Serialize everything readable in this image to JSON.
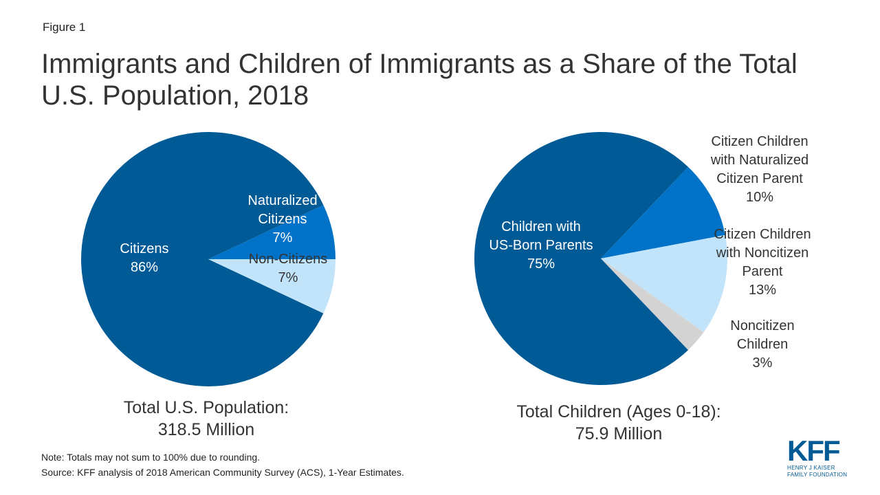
{
  "figure_label": "Figure 1",
  "title": "Immigrants and Children of Immigrants as a Share of the Total U.S. Population, 2018",
  "colors": {
    "dark_blue": "#005a96",
    "medium_blue": "#0073c8",
    "light_blue": "#c2e4fb",
    "gray": "#d3d3d3"
  },
  "chart_data": [
    {
      "type": "pie",
      "title": "Total U.S. Population: 318.5 Million",
      "caption_line1": "Total U.S. Population:",
      "caption_line2": "318.5 Million",
      "slices": [
        {
          "label": "Citizens",
          "value": 86,
          "value_label": "86%",
          "color": "#005a96",
          "label_lines": [
            "Citizens",
            "86%"
          ],
          "label_color": "#ffffff"
        },
        {
          "label": "Naturalized Citizens",
          "value": 7,
          "value_label": "7%",
          "color": "#0073c8",
          "label_lines": [
            "Naturalized",
            "Citizens",
            "7%"
          ],
          "label_color": "#ffffff"
        },
        {
          "label": "Non-Citizens",
          "value": 7,
          "value_label": "7%",
          "color": "#c2e4fb",
          "label_lines": [
            "Non-Citizens",
            "7%"
          ],
          "label_color": "#333333"
        }
      ]
    },
    {
      "type": "pie",
      "title": "Total Children (Ages 0-18): 75.9 Million",
      "caption_line1": "Total Children (Ages 0-18):",
      "caption_line2": "75.9 Million",
      "slices": [
        {
          "label": "Children with US-Born Parents",
          "value": 75,
          "value_label": "75%",
          "color": "#005a96",
          "label_lines": [
            "Children with",
            "US-Born Parents",
            "75%"
          ],
          "label_color": "#ffffff"
        },
        {
          "label": "Citizen Children with Naturalized Citizen Parent",
          "value": 10,
          "value_label": "10%",
          "color": "#0073c8",
          "label_lines": [
            "Citizen Children",
            "with Naturalized",
            "Citizen Parent",
            "10%"
          ],
          "label_color": "#333333"
        },
        {
          "label": "Citizen Children with Noncitizen Parent",
          "value": 13,
          "value_label": "13%",
          "color": "#c2e4fb",
          "label_lines": [
            "Citizen Children",
            "with Noncitizen",
            "Parent",
            "13%"
          ],
          "label_color": "#333333"
        },
        {
          "label": "Noncitizen Children",
          "value": 3,
          "value_label": "3%",
          "color": "#d3d3d3",
          "label_lines": [
            "Noncitizen",
            "Children",
            "3%"
          ],
          "label_color": "#333333"
        }
      ]
    }
  ],
  "notes": {
    "note": "Note: Totals may not sum to 100% due to rounding.",
    "source": "Source: KFF analysis of 2018 American Community Survey (ACS), 1-Year Estimates."
  },
  "logo": {
    "mark": "KFF",
    "line1": "HENRY J KAISER",
    "line2": "FAMILY FOUNDATION"
  }
}
